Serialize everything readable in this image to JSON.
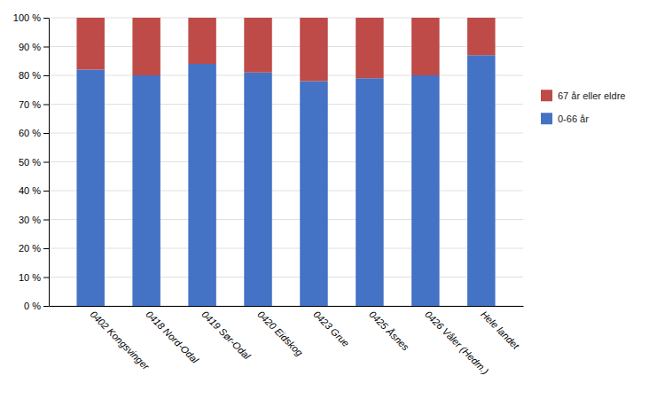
{
  "chart_data": {
    "type": "bar",
    "stacked": true,
    "categories": [
      "0402 Kongsvinger",
      "0418 Nord-Odal",
      "0419 Sør-Odal",
      "0420 Eidskog",
      "0423 Grue",
      "0425 Åsnes",
      "0426 Våler (Hedm.)",
      "Hele landet"
    ],
    "series": [
      {
        "name": "0-66 år",
        "color": "#4472C4",
        "values": [
          82,
          80,
          84,
          81,
          78,
          79,
          80,
          87
        ]
      },
      {
        "name": "67 år eller eldre",
        "color": "#BE4B48",
        "values": [
          18,
          20,
          16,
          19,
          22,
          21,
          20,
          13
        ]
      }
    ],
    "ylim": [
      0,
      100
    ],
    "yticks": [
      {
        "value": 0,
        "label": "0 %"
      },
      {
        "value": 10,
        "label": "10 %"
      },
      {
        "value": 20,
        "label": "20 %"
      },
      {
        "value": 30,
        "label": "30 %"
      },
      {
        "value": 40,
        "label": "40 %"
      },
      {
        "value": 50,
        "label": "50 %"
      },
      {
        "value": 60,
        "label": "60 %"
      },
      {
        "value": 70,
        "label": "70 %"
      },
      {
        "value": 80,
        "label": "80 %"
      },
      {
        "value": 90,
        "label": "90 %"
      },
      {
        "value": 100,
        "label": "100 %"
      }
    ],
    "grid": true,
    "legend": "right"
  }
}
